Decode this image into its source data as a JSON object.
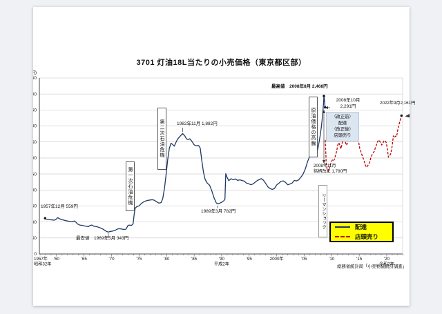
{
  "page": {
    "title": "3701 灯油18L当たりの小売価格（東京都区部）",
    "source": "総務省統計局「小売物価統計調査」"
  },
  "legend": {
    "delivery_label": "配達",
    "storefront_label": "店頭売り"
  },
  "annotations": {
    "max_label": "最高値　2008年8月 2,468円",
    "start_label": "1957年12月 559円",
    "min_label": "最安値　1969年5月 343円",
    "peak1982_label": "1982年11月 1,882円",
    "low1989_label": "1989年3月 782円",
    "oil_crisis_1": "第一次石油危機",
    "oil_crisis_2": "第二次石油危機",
    "crude_surge": "原油価格の高騰",
    "oct2008_line1": "2008年10月",
    "oct2008_line2": "2,291円",
    "rev_line1": "（改正前）",
    "rev_line2": "配達",
    "rev_line3": "（改正後）",
    "rev_line4": "店頭売り",
    "nov2008_line1": "2008年11月",
    "nov2008_line2": "銘柄改正 1,780円",
    "lehman": "リーマンショック",
    "sep2022_label": "2022年9月2,161円"
  },
  "chart_data": {
    "type": "line",
    "title": "3701 灯油18L当たりの小売価格（東京都区部）",
    "ylabel": "(円)",
    "ylim": [
      0,
      2750
    ],
    "ytick_step": 250,
    "grid": true,
    "legend_position": "lower-right",
    "y_tick_labels": [
      "0",
      "250",
      "500",
      "750",
      "1,000",
      "1,250",
      "1,500",
      "1,750",
      "2,000",
      "2,250",
      "2,500",
      "2,750"
    ],
    "x_ticks": [
      {
        "year": 1957,
        "label": "1957年",
        "sub": "昭和32年",
        "align": "start"
      },
      {
        "year": 1960,
        "label": "'60"
      },
      {
        "year": 1965,
        "label": "'65"
      },
      {
        "year": 1970,
        "label": "'70"
      },
      {
        "year": 1975,
        "label": "'75"
      },
      {
        "year": 1980,
        "label": "'80"
      },
      {
        "year": 1985,
        "label": "'85"
      },
      {
        "year": 1990,
        "label": "'90",
        "sub": "平成2年"
      },
      {
        "year": 1995,
        "label": "'95"
      },
      {
        "year": 2000,
        "label": "2000年"
      },
      {
        "year": 2005,
        "label": "'05"
      },
      {
        "year": 2010,
        "label": "'10"
      },
      {
        "year": 2015,
        "label": "'15"
      },
      {
        "year": 2020,
        "label": "'20",
        "sub": "令和2年"
      }
    ],
    "key_points": [
      {
        "label": "1957年12月",
        "value_yen": 559
      },
      {
        "label": "最安値 1969年5月",
        "value_yen": 343
      },
      {
        "label": "1982年11月",
        "value_yen": 1882
      },
      {
        "label": "1989年3月",
        "value_yen": 782
      },
      {
        "label": "最高値 2008年8月",
        "value_yen": 2468
      },
      {
        "label": "2008年10月",
        "value_yen": 2291
      },
      {
        "label": "2008年11月 銘柄改正",
        "value_yen": 1780
      },
      {
        "label": "2022年9月",
        "value_yen": 2161
      }
    ],
    "markers": [
      [
        1957.92,
        559
      ],
      [
        2008.58,
        2468
      ],
      [
        2008.79,
        2291
      ],
      [
        2022.67,
        2161
      ]
    ],
    "series": [
      {
        "name": "配達",
        "style": "solid",
        "color": "#1f3864",
        "points": [
          [
            1957.92,
            559
          ],
          [
            1958.1,
            545
          ],
          [
            1958.4,
            540
          ],
          [
            1958.8,
            535
          ],
          [
            1959.2,
            532
          ],
          [
            1959.6,
            528
          ],
          [
            1959.9,
            540
          ],
          [
            1960.2,
            568
          ],
          [
            1960.5,
            552
          ],
          [
            1960.8,
            540
          ],
          [
            1961.2,
            532
          ],
          [
            1961.6,
            522
          ],
          [
            1962.0,
            515
          ],
          [
            1962.4,
            508
          ],
          [
            1962.8,
            502
          ],
          [
            1963.2,
            515
          ],
          [
            1963.5,
            498
          ],
          [
            1963.8,
            470
          ],
          [
            1964.2,
            452
          ],
          [
            1964.6,
            448
          ],
          [
            1965.0,
            440
          ],
          [
            1965.4,
            432
          ],
          [
            1965.8,
            428
          ],
          [
            1966.1,
            445
          ],
          [
            1966.4,
            452
          ],
          [
            1966.8,
            432
          ],
          [
            1967.2,
            428
          ],
          [
            1967.6,
            418
          ],
          [
            1968.0,
            405
          ],
          [
            1968.4,
            390
          ],
          [
            1968.8,
            368
          ],
          [
            1969.1,
            350
          ],
          [
            1969.4,
            343
          ],
          [
            1969.8,
            352
          ],
          [
            1970.2,
            358
          ],
          [
            1970.6,
            368
          ],
          [
            1971.0,
            388
          ],
          [
            1971.4,
            395
          ],
          [
            1971.8,
            390
          ],
          [
            1972.2,
            383
          ],
          [
            1972.6,
            387
          ],
          [
            1973.0,
            448
          ],
          [
            1973.3,
            452
          ],
          [
            1973.6,
            445
          ],
          [
            1973.9,
            470
          ],
          [
            1974.1,
            620
          ],
          [
            1974.3,
            718
          ],
          [
            1974.6,
            740
          ],
          [
            1975.0,
            752
          ],
          [
            1975.4,
            788
          ],
          [
            1975.8,
            812
          ],
          [
            1976.2,
            828
          ],
          [
            1976.6,
            838
          ],
          [
            1977.0,
            843
          ],
          [
            1977.4,
            848
          ],
          [
            1977.8,
            838
          ],
          [
            1978.2,
            815
          ],
          [
            1978.6,
            795
          ],
          [
            1979.0,
            802
          ],
          [
            1979.3,
            868
          ],
          [
            1979.6,
            1020
          ],
          [
            1979.9,
            1240
          ],
          [
            1980.2,
            1480
          ],
          [
            1980.5,
            1650
          ],
          [
            1980.8,
            1730
          ],
          [
            1981.1,
            1710
          ],
          [
            1981.4,
            1685
          ],
          [
            1981.7,
            1745
          ],
          [
            1982.0,
            1795
          ],
          [
            1982.4,
            1835
          ],
          [
            1982.92,
            1882
          ],
          [
            1983.3,
            1845
          ],
          [
            1983.6,
            1800
          ],
          [
            1983.9,
            1785
          ],
          [
            1984.2,
            1800
          ],
          [
            1984.6,
            1760
          ],
          [
            1985.0,
            1705
          ],
          [
            1985.4,
            1690
          ],
          [
            1985.8,
            1695
          ],
          [
            1986.1,
            1655
          ],
          [
            1986.4,
            1450
          ],
          [
            1986.7,
            1280
          ],
          [
            1987.0,
            1165
          ],
          [
            1987.4,
            1105
          ],
          [
            1987.8,
            1075
          ],
          [
            1988.2,
            990
          ],
          [
            1988.6,
            880
          ],
          [
            1989.0,
            800
          ],
          [
            1989.25,
            782
          ],
          [
            1989.6,
            792
          ],
          [
            1990.0,
            808
          ],
          [
            1990.4,
            832
          ],
          [
            1990.6,
            855
          ],
          [
            1990.75,
            1255
          ],
          [
            1991.0,
            1195
          ],
          [
            1991.3,
            1145
          ],
          [
            1991.7,
            1175
          ],
          [
            1992.1,
            1160
          ],
          [
            1992.5,
            1172
          ],
          [
            1992.9,
            1150
          ],
          [
            1993.3,
            1158
          ],
          [
            1993.7,
            1148
          ],
          [
            1994.1,
            1138
          ],
          [
            1994.5,
            1108
          ],
          [
            1994.9,
            1098
          ],
          [
            1995.3,
            1082
          ],
          [
            1995.7,
            1095
          ],
          [
            1996.1,
            1122
          ],
          [
            1996.5,
            1148
          ],
          [
            1996.9,
            1165
          ],
          [
            1997.2,
            1178
          ],
          [
            1997.6,
            1152
          ],
          [
            1998.0,
            1102
          ],
          [
            1998.4,
            1048
          ],
          [
            1998.8,
            1022
          ],
          [
            1999.2,
            1008
          ],
          [
            1999.6,
            1022
          ],
          [
            2000.0,
            1078
          ],
          [
            2000.4,
            1105
          ],
          [
            2000.8,
            1135
          ],
          [
            2001.2,
            1142
          ],
          [
            2001.6,
            1118
          ],
          [
            2002.0,
            1082
          ],
          [
            2002.4,
            1092
          ],
          [
            2002.8,
            1108
          ],
          [
            2003.2,
            1148
          ],
          [
            2003.6,
            1142
          ],
          [
            2004.0,
            1158
          ],
          [
            2004.4,
            1200
          ],
          [
            2004.8,
            1248
          ],
          [
            2005.2,
            1330
          ],
          [
            2005.6,
            1438
          ],
          [
            2006.0,
            1528
          ],
          [
            2006.4,
            1618
          ],
          [
            2006.7,
            1652
          ],
          [
            2007.0,
            1602
          ],
          [
            2007.3,
            1575
          ],
          [
            2007.6,
            1695
          ],
          [
            2007.9,
            1852
          ],
          [
            2008.1,
            1975
          ],
          [
            2008.3,
            2135
          ],
          [
            2008.5,
            2345
          ],
          [
            2008.58,
            2468
          ],
          [
            2008.67,
            2420
          ],
          [
            2008.79,
            2291
          ]
        ]
      },
      {
        "name": "店頭売り",
        "style": "dashed",
        "color": "#c00000",
        "points": [
          [
            2008.83,
            1780
          ],
          [
            2008.92,
            1590
          ],
          [
            2009.0,
            1430
          ],
          [
            2009.17,
            1315
          ],
          [
            2009.33,
            1292
          ],
          [
            2009.5,
            1320
          ],
          [
            2009.7,
            1388
          ],
          [
            2009.9,
            1428
          ],
          [
            2010.1,
            1468
          ],
          [
            2010.3,
            1452
          ],
          [
            2010.5,
            1482
          ],
          [
            2010.7,
            1545
          ],
          [
            2010.9,
            1608
          ],
          [
            2011.1,
            1702
          ],
          [
            2011.3,
            1738
          ],
          [
            2011.5,
            1682
          ],
          [
            2011.7,
            1645
          ],
          [
            2011.9,
            1732
          ],
          [
            2012.1,
            1808
          ],
          [
            2012.3,
            1818
          ],
          [
            2012.5,
            1742
          ],
          [
            2012.7,
            1698
          ],
          [
            2012.9,
            1748
          ],
          [
            2013.1,
            1792
          ],
          [
            2013.3,
            1838
          ],
          [
            2013.5,
            1822
          ],
          [
            2013.7,
            1802
          ],
          [
            2013.9,
            1848
          ],
          [
            2014.1,
            1872
          ],
          [
            2014.3,
            1898
          ],
          [
            2014.5,
            1878
          ],
          [
            2014.7,
            1842
          ],
          [
            2014.9,
            1752
          ],
          [
            2015.1,
            1648
          ],
          [
            2015.3,
            1602
          ],
          [
            2015.5,
            1548
          ],
          [
            2015.7,
            1502
          ],
          [
            2015.9,
            1452
          ],
          [
            2016.1,
            1392
          ],
          [
            2016.3,
            1355
          ],
          [
            2016.5,
            1372
          ],
          [
            2016.7,
            1402
          ],
          [
            2016.9,
            1432
          ],
          [
            2017.1,
            1502
          ],
          [
            2017.3,
            1545
          ],
          [
            2017.5,
            1572
          ],
          [
            2017.7,
            1602
          ],
          [
            2017.9,
            1652
          ],
          [
            2018.1,
            1695
          ],
          [
            2018.3,
            1748
          ],
          [
            2018.5,
            1782
          ],
          [
            2018.7,
            1762
          ],
          [
            2018.9,
            1742
          ],
          [
            2019.1,
            1702
          ],
          [
            2019.3,
            1732
          ],
          [
            2019.5,
            1765
          ],
          [
            2019.7,
            1772
          ],
          [
            2019.9,
            1742
          ],
          [
            2020.1,
            1652
          ],
          [
            2020.3,
            1512
          ],
          [
            2020.5,
            1532
          ],
          [
            2020.7,
            1562
          ],
          [
            2020.9,
            1640
          ],
          [
            2021.1,
            1760
          ],
          [
            2021.2,
            1845
          ],
          [
            2021.4,
            1815
          ],
          [
            2021.6,
            1842
          ],
          [
            2021.8,
            1835
          ],
          [
            2022.0,
            1935
          ],
          [
            2022.2,
            2010
          ],
          [
            2022.4,
            2075
          ],
          [
            2022.67,
            2161
          ]
        ]
      }
    ]
  }
}
